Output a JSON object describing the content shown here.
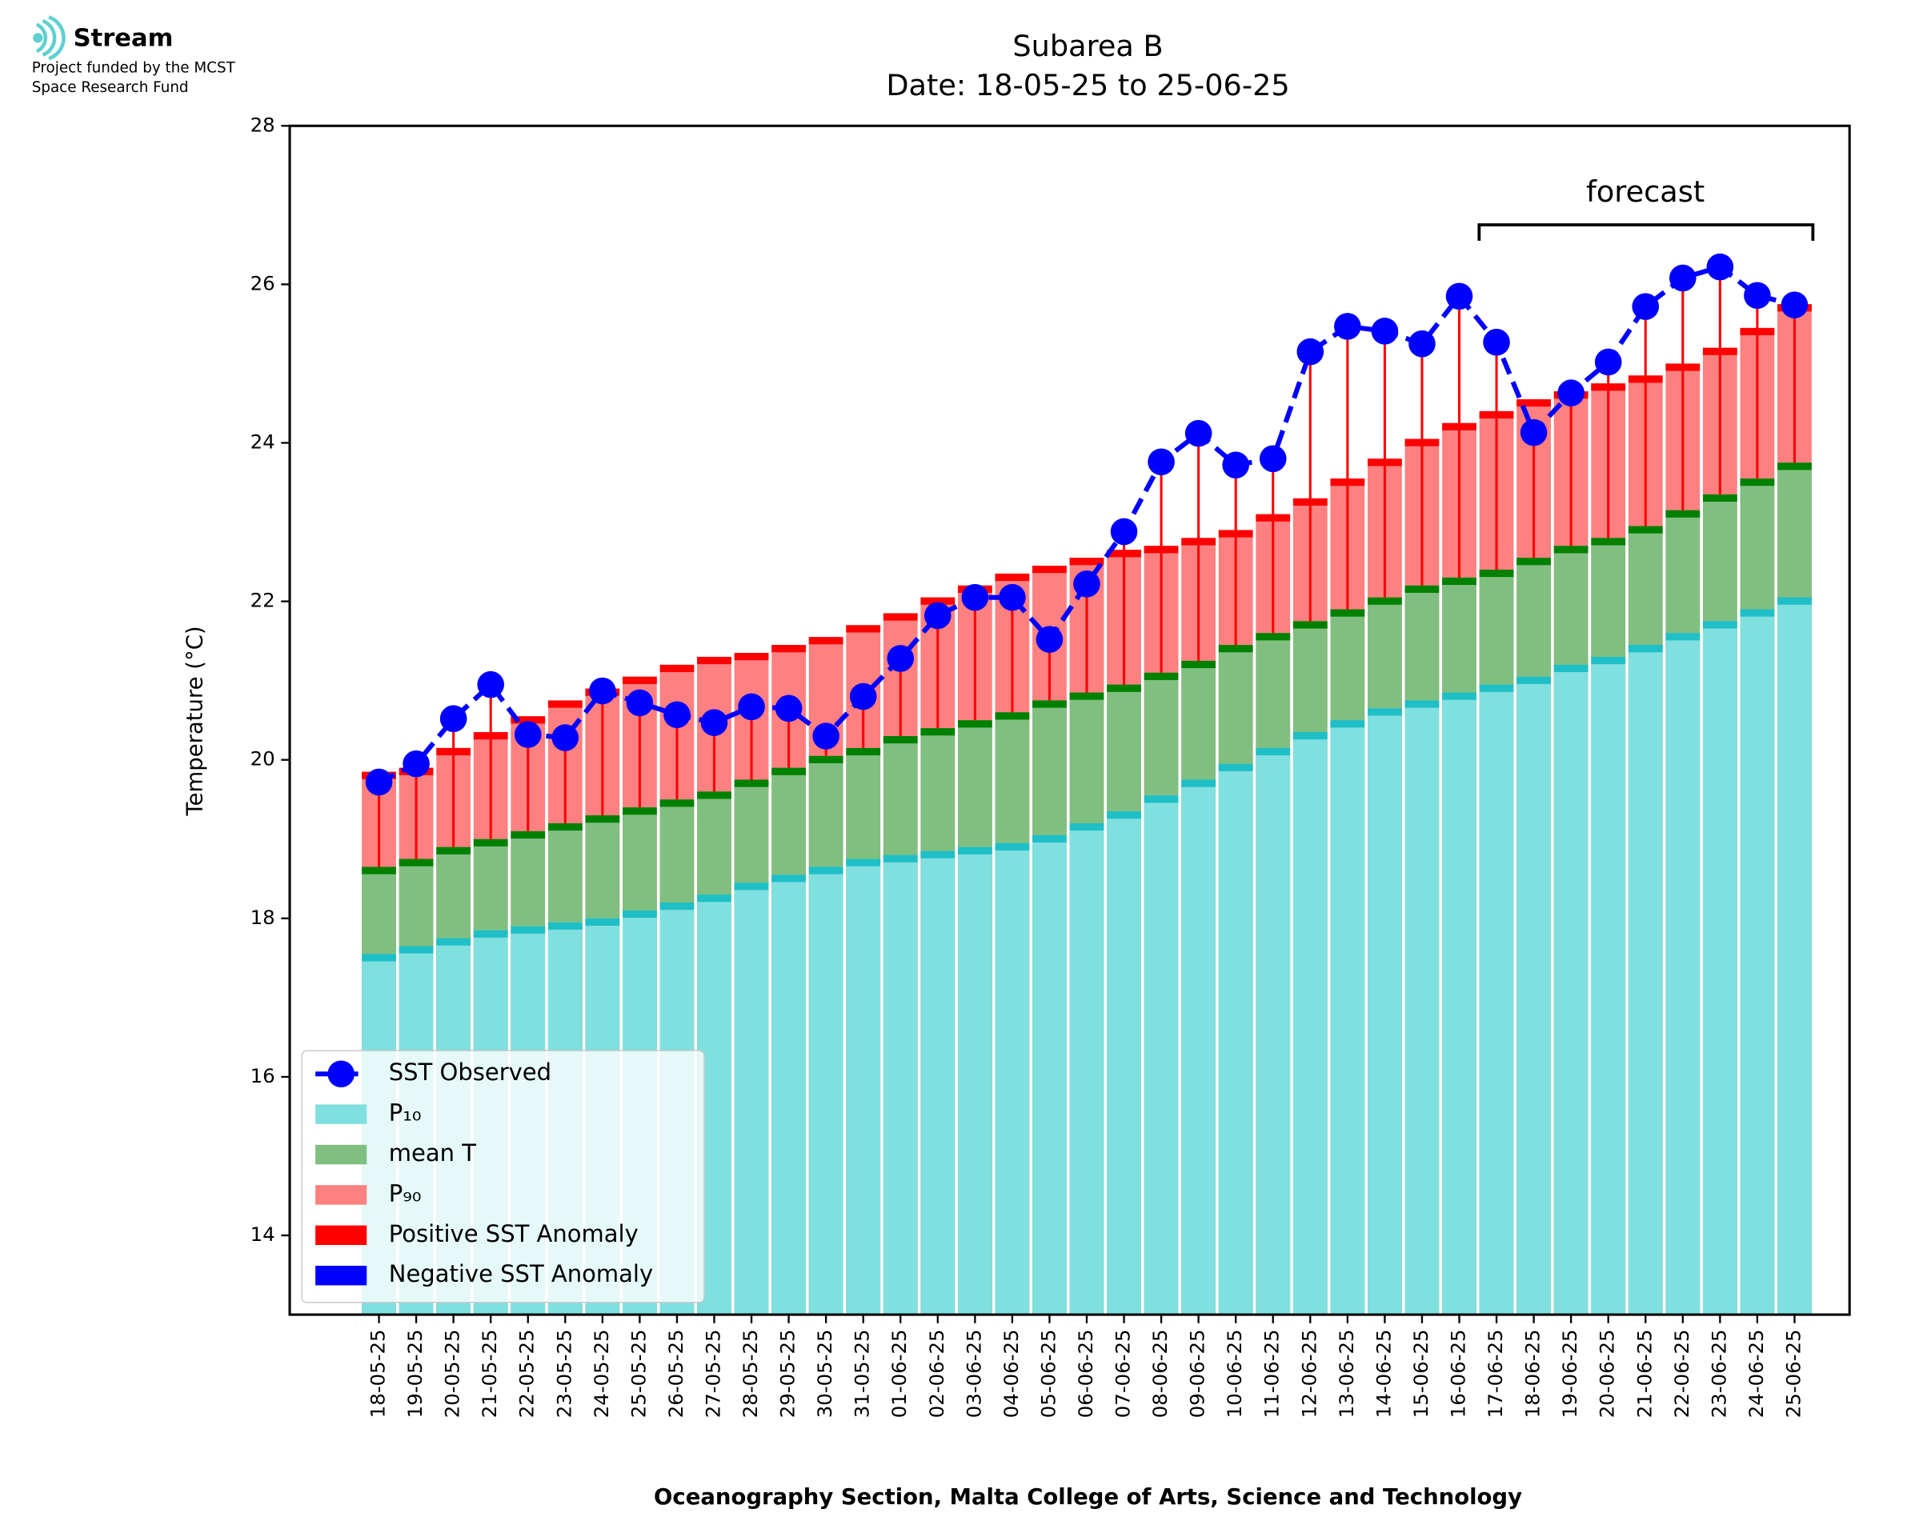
{
  "header": {
    "brand": "Stream",
    "funding": [
      "Project funded by the MCST",
      "Space Research Fund"
    ]
  },
  "chart_data": {
    "type": "bar",
    "title": "Subarea B",
    "subtitle": "Date: 18-05-25 to 25-06-25",
    "y_label": "Temperature (°C)",
    "x_label": "Oceanography Section, Malta College of Arts, Science and Technology",
    "annotation": "forecast",
    "categories": [
      "18-05-25",
      "19-05-25",
      "20-05-25",
      "21-05-25",
      "22-05-25",
      "23-05-25",
      "24-05-25",
      "25-05-25",
      "26-05-25",
      "27-05-25",
      "28-05-25",
      "29-05-25",
      "30-05-25",
      "31-05-25",
      "01-06-25",
      "02-06-25",
      "03-06-25",
      "04-06-25",
      "05-06-25",
      "06-06-25",
      "07-06-25",
      "08-06-25",
      "09-06-25",
      "10-06-25",
      "11-06-25",
      "12-06-25",
      "13-06-25",
      "14-06-25",
      "15-06-25",
      "16-06-25",
      "17-06-25",
      "18-06-25",
      "19-06-25",
      "20-06-25",
      "21-06-25",
      "22-06-25",
      "23-06-25",
      "24-06-25",
      "25-06-25"
    ],
    "series": [
      {
        "name": "SST Observed",
        "color": "#0000ff",
        "values": [
          19.72,
          19.95,
          20.52,
          20.95,
          20.32,
          20.28,
          20.87,
          20.72,
          20.57,
          20.47,
          20.67,
          20.65,
          20.3,
          20.8,
          21.28,
          21.82,
          22.05,
          22.05,
          21.52,
          22.22,
          22.88,
          23.76,
          24.12,
          23.72,
          23.8,
          25.15,
          25.47,
          25.41,
          25.25,
          25.85,
          25.27,
          24.13,
          24.63,
          25.02,
          25.72,
          26.08,
          26.22,
          25.86,
          25.74
        ]
      },
      {
        "name": "P₁₀",
        "color": "#80dfdf",
        "cap_color": "#1fbfc7",
        "values": [
          17.55,
          17.65,
          17.75,
          17.85,
          17.9,
          17.95,
          18.0,
          18.1,
          18.2,
          18.3,
          18.45,
          18.55,
          18.65,
          18.75,
          18.8,
          18.85,
          18.9,
          18.95,
          19.05,
          19.2,
          19.35,
          19.55,
          19.75,
          19.95,
          20.15,
          20.35,
          20.5,
          20.65,
          20.75,
          20.85,
          20.95,
          21.05,
          21.2,
          21.3,
          21.45,
          21.6,
          21.75,
          21.9,
          22.05
        ]
      },
      {
        "name": "mean T",
        "color": "#80bf80",
        "cap_color": "#008000",
        "values": [
          18.65,
          18.75,
          18.9,
          19.0,
          19.1,
          19.2,
          19.3,
          19.4,
          19.5,
          19.6,
          19.75,
          19.9,
          20.05,
          20.15,
          20.3,
          20.4,
          20.5,
          20.6,
          20.75,
          20.85,
          20.95,
          21.1,
          21.25,
          21.45,
          21.6,
          21.75,
          21.9,
          22.05,
          22.2,
          22.3,
          22.4,
          22.55,
          22.7,
          22.8,
          22.95,
          23.15,
          23.35,
          23.55,
          23.75
        ]
      },
      {
        "name": "P₉₀",
        "color": "#ff8080",
        "cap_color": "#ff0000",
        "values": [
          19.85,
          19.9,
          20.15,
          20.35,
          20.55,
          20.75,
          20.9,
          21.05,
          21.2,
          21.3,
          21.35,
          21.45,
          21.55,
          21.7,
          21.85,
          22.05,
          22.2,
          22.35,
          22.45,
          22.55,
          22.65,
          22.7,
          22.8,
          22.9,
          23.1,
          23.3,
          23.55,
          23.8,
          24.05,
          24.25,
          24.4,
          24.55,
          24.65,
          24.75,
          24.85,
          25.0,
          25.2,
          25.45,
          25.75
        ]
      }
    ],
    "anomaly_legend": [
      {
        "name": "Positive SST Anomaly",
        "color": "#ff0000"
      },
      {
        "name": "Negative SST Anomaly",
        "color": "#0000ff"
      }
    ],
    "ylim": [
      13,
      28
    ],
    "yticks": [
      14,
      16,
      18,
      20,
      22,
      24,
      26,
      28
    ],
    "legend": "lower left"
  }
}
